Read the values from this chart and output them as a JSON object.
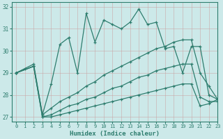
{
  "xlabel": "Humidex (Indice chaleur)",
  "bg_color": "#cce9e9",
  "line_color": "#2e7d6e",
  "grid_color": "#b8d8d8",
  "xlim": [
    -0.5,
    23
  ],
  "ylim": [
    26.8,
    32.2
  ],
  "yticks": [
    27,
    28,
    29,
    30,
    31,
    32
  ],
  "xticks": [
    0,
    1,
    2,
    3,
    4,
    5,
    6,
    7,
    8,
    9,
    10,
    11,
    12,
    13,
    14,
    15,
    16,
    17,
    18,
    19,
    20,
    21,
    22,
    23
  ],
  "line1_x": [
    0,
    1,
    2,
    3,
    4,
    5,
    6,
    7,
    8,
    9,
    10,
    11,
    12,
    13,
    14,
    15,
    16,
    17,
    18,
    19,
    20,
    21,
    22,
    23
  ],
  "line1_y": [
    29.0,
    29.2,
    29.4,
    27.1,
    28.5,
    30.3,
    30.6,
    29.0,
    31.7,
    30.4,
    31.4,
    31.2,
    31.0,
    31.3,
    31.9,
    31.2,
    31.3,
    30.1,
    30.2,
    29.0,
    30.2,
    30.2,
    28.0,
    27.8
  ],
  "line2_x": [
    0,
    2,
    3,
    4,
    5,
    6,
    7,
    8,
    9,
    10,
    11,
    12,
    13,
    14,
    15,
    16,
    17,
    18,
    19,
    20,
    21,
    22,
    23
  ],
  "line2_y": [
    29.0,
    29.3,
    27.1,
    27.4,
    27.7,
    27.9,
    28.1,
    28.4,
    28.6,
    28.9,
    29.1,
    29.3,
    29.5,
    29.7,
    29.9,
    30.1,
    30.2,
    30.4,
    30.5,
    30.5,
    29.0,
    28.4,
    27.8
  ],
  "line3_x": [
    0,
    2,
    3,
    4,
    5,
    6,
    7,
    8,
    9,
    10,
    11,
    12,
    13,
    14,
    15,
    16,
    17,
    18,
    19,
    20,
    21,
    22,
    23
  ],
  "line3_y": [
    29.0,
    29.3,
    27.0,
    27.1,
    27.3,
    27.5,
    27.6,
    27.8,
    27.9,
    28.1,
    28.3,
    28.4,
    28.6,
    28.8,
    28.9,
    29.1,
    29.2,
    29.3,
    29.4,
    29.4,
    27.9,
    27.7,
    27.7
  ],
  "line4_x": [
    0,
    2,
    3,
    4,
    5,
    6,
    7,
    8,
    9,
    10,
    11,
    12,
    13,
    14,
    15,
    16,
    17,
    18,
    19,
    20,
    21,
    22,
    23
  ],
  "line4_y": [
    29.0,
    29.3,
    27.0,
    27.0,
    27.1,
    27.2,
    27.3,
    27.4,
    27.5,
    27.6,
    27.7,
    27.8,
    27.9,
    28.0,
    28.1,
    28.2,
    28.3,
    28.4,
    28.5,
    28.5,
    27.5,
    27.6,
    27.8
  ]
}
